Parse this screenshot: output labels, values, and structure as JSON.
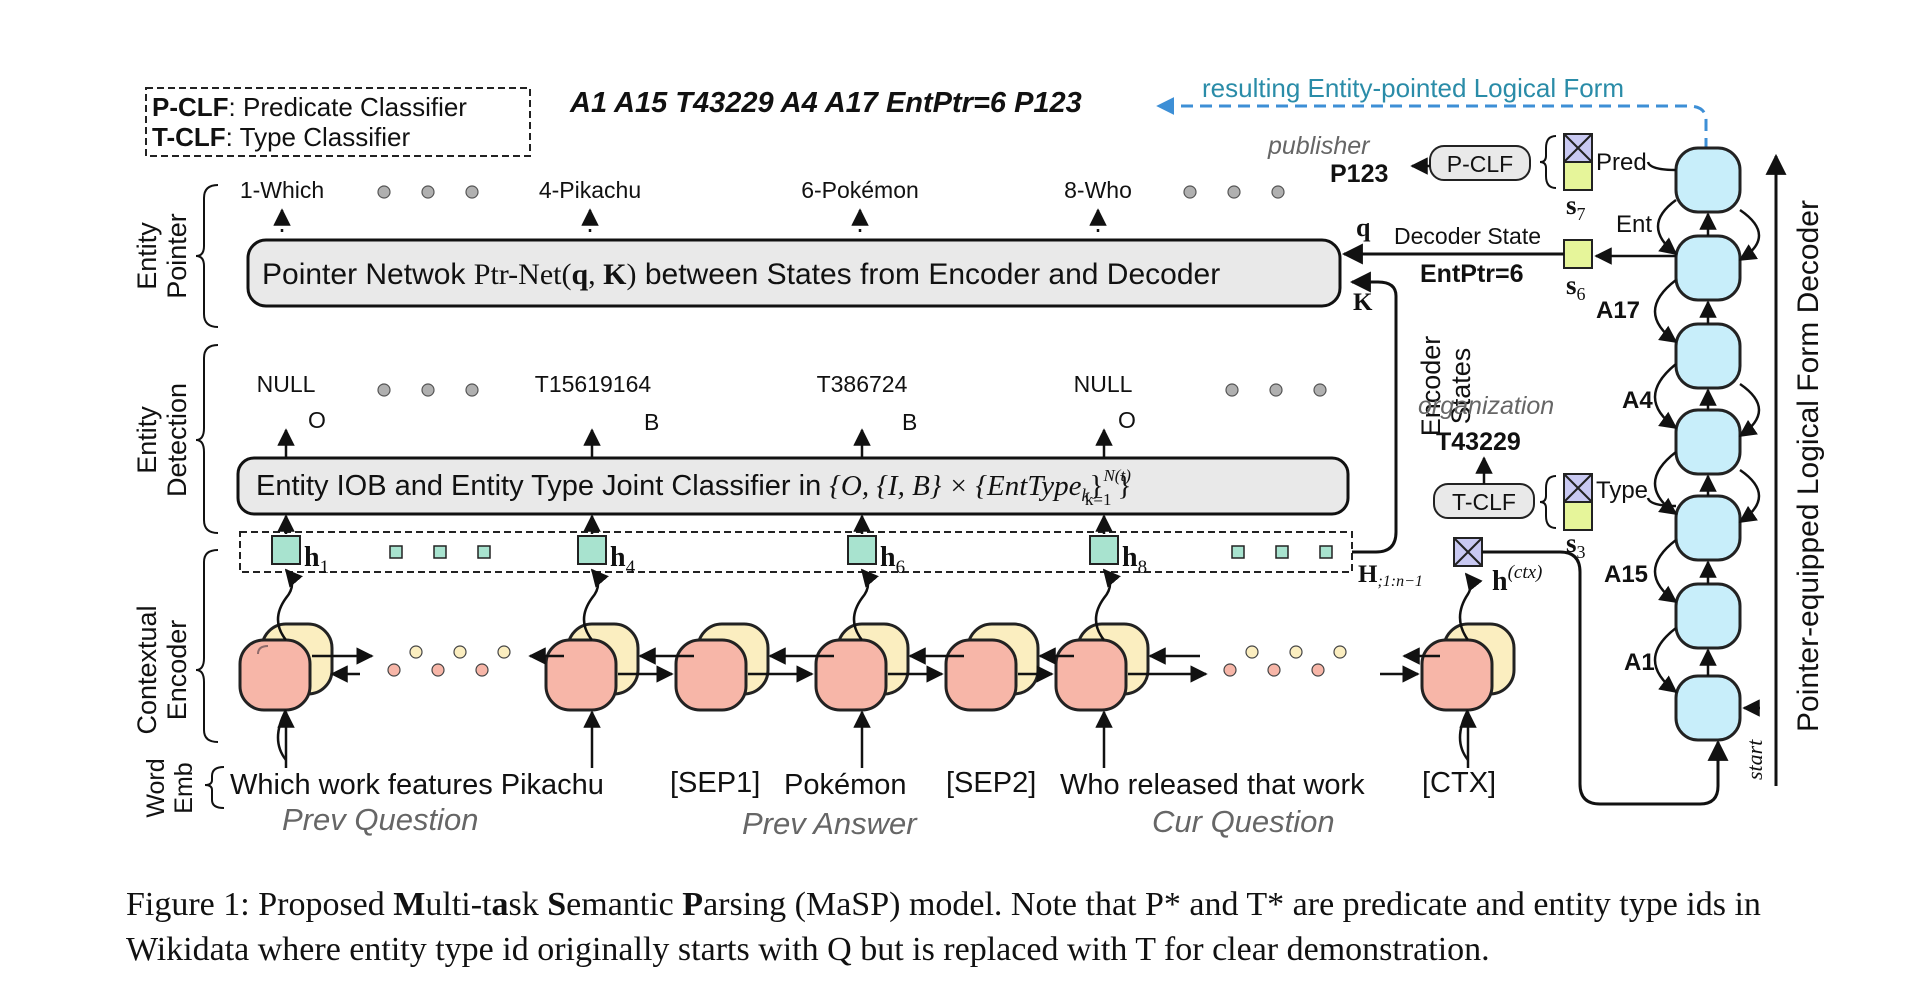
{
  "legend": {
    "pclf_abbr": "P-CLF",
    "pclf_text": ": Predicate Classifier",
    "tclf_abbr": "T-CLF",
    "tclf_text": ": Type Classifier"
  },
  "result_form": "A1 A15 T43229 A4 A17 EntPtr=6 P123",
  "result_label": "resulting Entity-pointed Logical Form",
  "sections": {
    "entity_pointer": [
      "Entity",
      "Pointer"
    ],
    "entity_detection": [
      "Entity",
      "Detection"
    ],
    "contextual_encoder": [
      "Contextual",
      "Encoder"
    ],
    "word_emb": [
      "Word",
      "Emb"
    ]
  },
  "pointer_tokens": [
    "1-Which",
    "4-Pikachu",
    "6-Pokémon",
    "8-Who"
  ],
  "pointer_box": {
    "pre": "Pointer Netwok ",
    "math_a": "Ptr-Net(",
    "q": "q",
    "comma": ", ",
    "k": "K",
    "math_b": ")",
    "post": " between States from Encoder and Decoder"
  },
  "detection_labels": [
    "NULL",
    "T15619164",
    "T386724",
    "NULL"
  ],
  "iob_tags": [
    "O",
    "B",
    "B",
    "O"
  ],
  "detection_box": {
    "pre": "Entity IOB and Entity Type Joint Classifier in ",
    "math": "{O, {I, B} × {EntType",
    "sub_k": "k",
    "close": "}",
    "sup": "N(t)",
    "sub": "k=1",
    "end": "}"
  },
  "hidden_states": [
    "h",
    "h",
    "h",
    "h"
  ],
  "hidden_subs": [
    "1",
    "4",
    "6",
    "8"
  ],
  "hidden_seq": {
    "main": "H",
    "sub": ";1:n−1"
  },
  "ctx_state": {
    "main": "h",
    "sup": "(ctx)"
  },
  "encoder_states": [
    "Encoder",
    "States"
  ],
  "k_label": "K",
  "q_label": "q",
  "decoder_state_label": "Decoder State",
  "entptr_label": "EntPtr=6",
  "publisher": {
    "category": "publisher",
    "value": "P123",
    "clf": "P-CLF"
  },
  "organization": {
    "category": "organization",
    "value": "T43229",
    "clf": "T-CLF"
  },
  "states": {
    "s7": "s",
    "s7_sub": "7",
    "s6": "s",
    "s6_sub": "6",
    "s3": "s",
    "s3_sub": "3"
  },
  "decoder_branch_labels": {
    "pred": "Pred",
    "ent": "Ent",
    "type": "Type"
  },
  "decoder_tokens": [
    "A17",
    "A4",
    "A15",
    "A1"
  ],
  "decoder_start": "start",
  "decoder_title": "Pointer-equipped Logical Form Decoder",
  "word_groups": [
    "Which work features Pikachu",
    "[SEP1]",
    "Pokémon",
    "[SEP2]",
    "Who released that work",
    "[CTX]"
  ],
  "segment_labels": [
    "Prev Question",
    "Prev Answer",
    "Cur Question"
  ],
  "caption": {
    "p1": "Figure 1: Proposed ",
    "b1": "M",
    "p2": "ulti-",
    "p3": "t",
    "b2": "a",
    "p4": "sk ",
    "b3": "S",
    "p5": "emantic ",
    "b4": "P",
    "p6": "arsing (MaSP) model. Note that P* and T* are predicate and entity type ids in Wikidata where entity type id originally starts with Q but is replaced with T for clear demonstration."
  },
  "colors": {
    "decoder_cell": "#c8eefa",
    "encoder_front": "#f7b6a8",
    "encoder_back": "#fbeec0",
    "hidden_box": "#a8e3cf",
    "state_green": "#e6f59a",
    "state_blue": "#c9c9f2",
    "result_arrow": "#3d8fd6",
    "result_text": "#2a8ca8",
    "box_fill": "#e9e9e9"
  }
}
